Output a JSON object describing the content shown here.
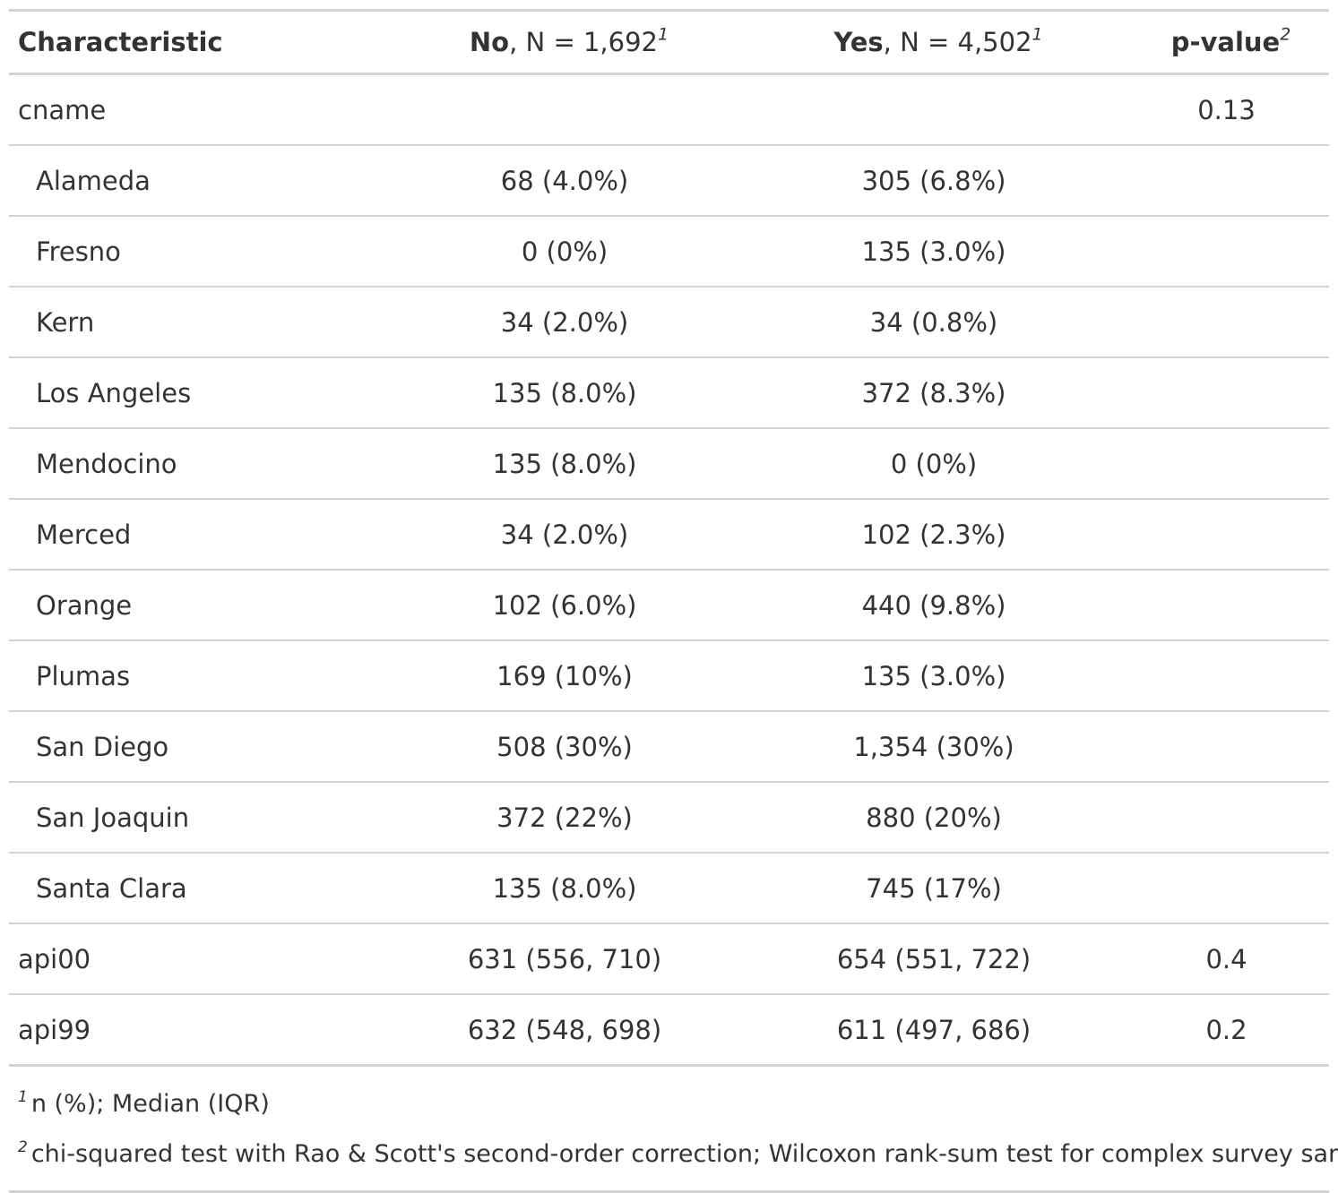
{
  "header": {
    "characteristic": "Characteristic",
    "col_no_label": "No",
    "col_no_n": ", N = 1,692",
    "col_no_mark": "1",
    "col_yes_label": "Yes",
    "col_yes_n": ", N = 4,502",
    "col_yes_mark": "1",
    "pvalue_label": "p-value",
    "pvalue_mark": "2"
  },
  "rows": [
    {
      "label": "cname",
      "no": "",
      "yes": "",
      "p": "0.13"
    },
    {
      "label": "Alameda",
      "no": "68 (4.0%)",
      "yes": "305 (6.8%)",
      "p": ""
    },
    {
      "label": "Fresno",
      "no": "0 (0%)",
      "yes": "135 (3.0%)",
      "p": ""
    },
    {
      "label": "Kern",
      "no": "34 (2.0%)",
      "yes": "34 (0.8%)",
      "p": ""
    },
    {
      "label": "Los Angeles",
      "no": "135 (8.0%)",
      "yes": "372 (8.3%)",
      "p": ""
    },
    {
      "label": "Mendocino",
      "no": "135 (8.0%)",
      "yes": "0 (0%)",
      "p": ""
    },
    {
      "label": "Merced",
      "no": "34 (2.0%)",
      "yes": "102 (2.3%)",
      "p": ""
    },
    {
      "label": "Orange",
      "no": "102 (6.0%)",
      "yes": "440 (9.8%)",
      "p": ""
    },
    {
      "label": "Plumas",
      "no": "169 (10%)",
      "yes": "135 (3.0%)",
      "p": ""
    },
    {
      "label": "San Diego",
      "no": "508 (30%)",
      "yes": "1,354 (30%)",
      "p": ""
    },
    {
      "label": "San Joaquin",
      "no": "372 (22%)",
      "yes": "880 (20%)",
      "p": ""
    },
    {
      "label": "Santa Clara",
      "no": "135 (8.0%)",
      "yes": "745 (17%)",
      "p": ""
    },
    {
      "label": "api00",
      "no": "631 (556, 710)",
      "yes": "654 (551, 722)",
      "p": "0.4"
    },
    {
      "label": "api99",
      "no": "632 (548, 698)",
      "yes": "611 (497, 686)",
      "p": "0.2"
    }
  ],
  "footnotes": [
    {
      "mark": "1",
      "text": "n (%); Median (IQR)"
    },
    {
      "mark": "2",
      "text": "chi-squared test with Rao & Scott's second-order correction; Wilcoxon rank-sum test for complex survey samples"
    }
  ]
}
